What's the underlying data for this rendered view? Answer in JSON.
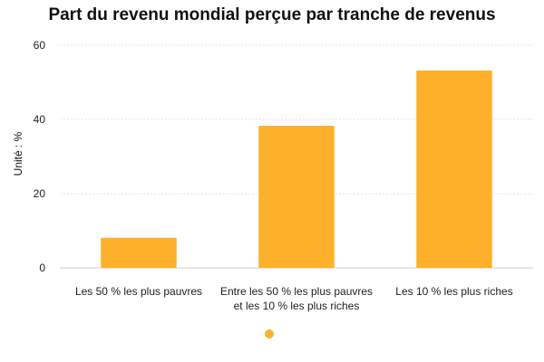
{
  "chart_data": {
    "type": "bar",
    "title": "Part du revenu mondial perçue par tranche de revenus",
    "xlabel": "",
    "ylabel": "Unité : %",
    "categories": [
      [
        "Les 50 % les plus pauvres"
      ],
      [
        "Entre les 50 % les plus pauvres",
        "et les 10 % les plus riches"
      ],
      [
        "Les 10 % les plus riches"
      ]
    ],
    "series": [
      {
        "name": "",
        "values": [
          8.1,
          38.3,
          53.2
        ],
        "color": "#fdb12a"
      }
    ],
    "ylim": [
      0,
      60
    ],
    "yticks": [
      0,
      20,
      40,
      60
    ],
    "grid": true,
    "legend": "bottom"
  }
}
